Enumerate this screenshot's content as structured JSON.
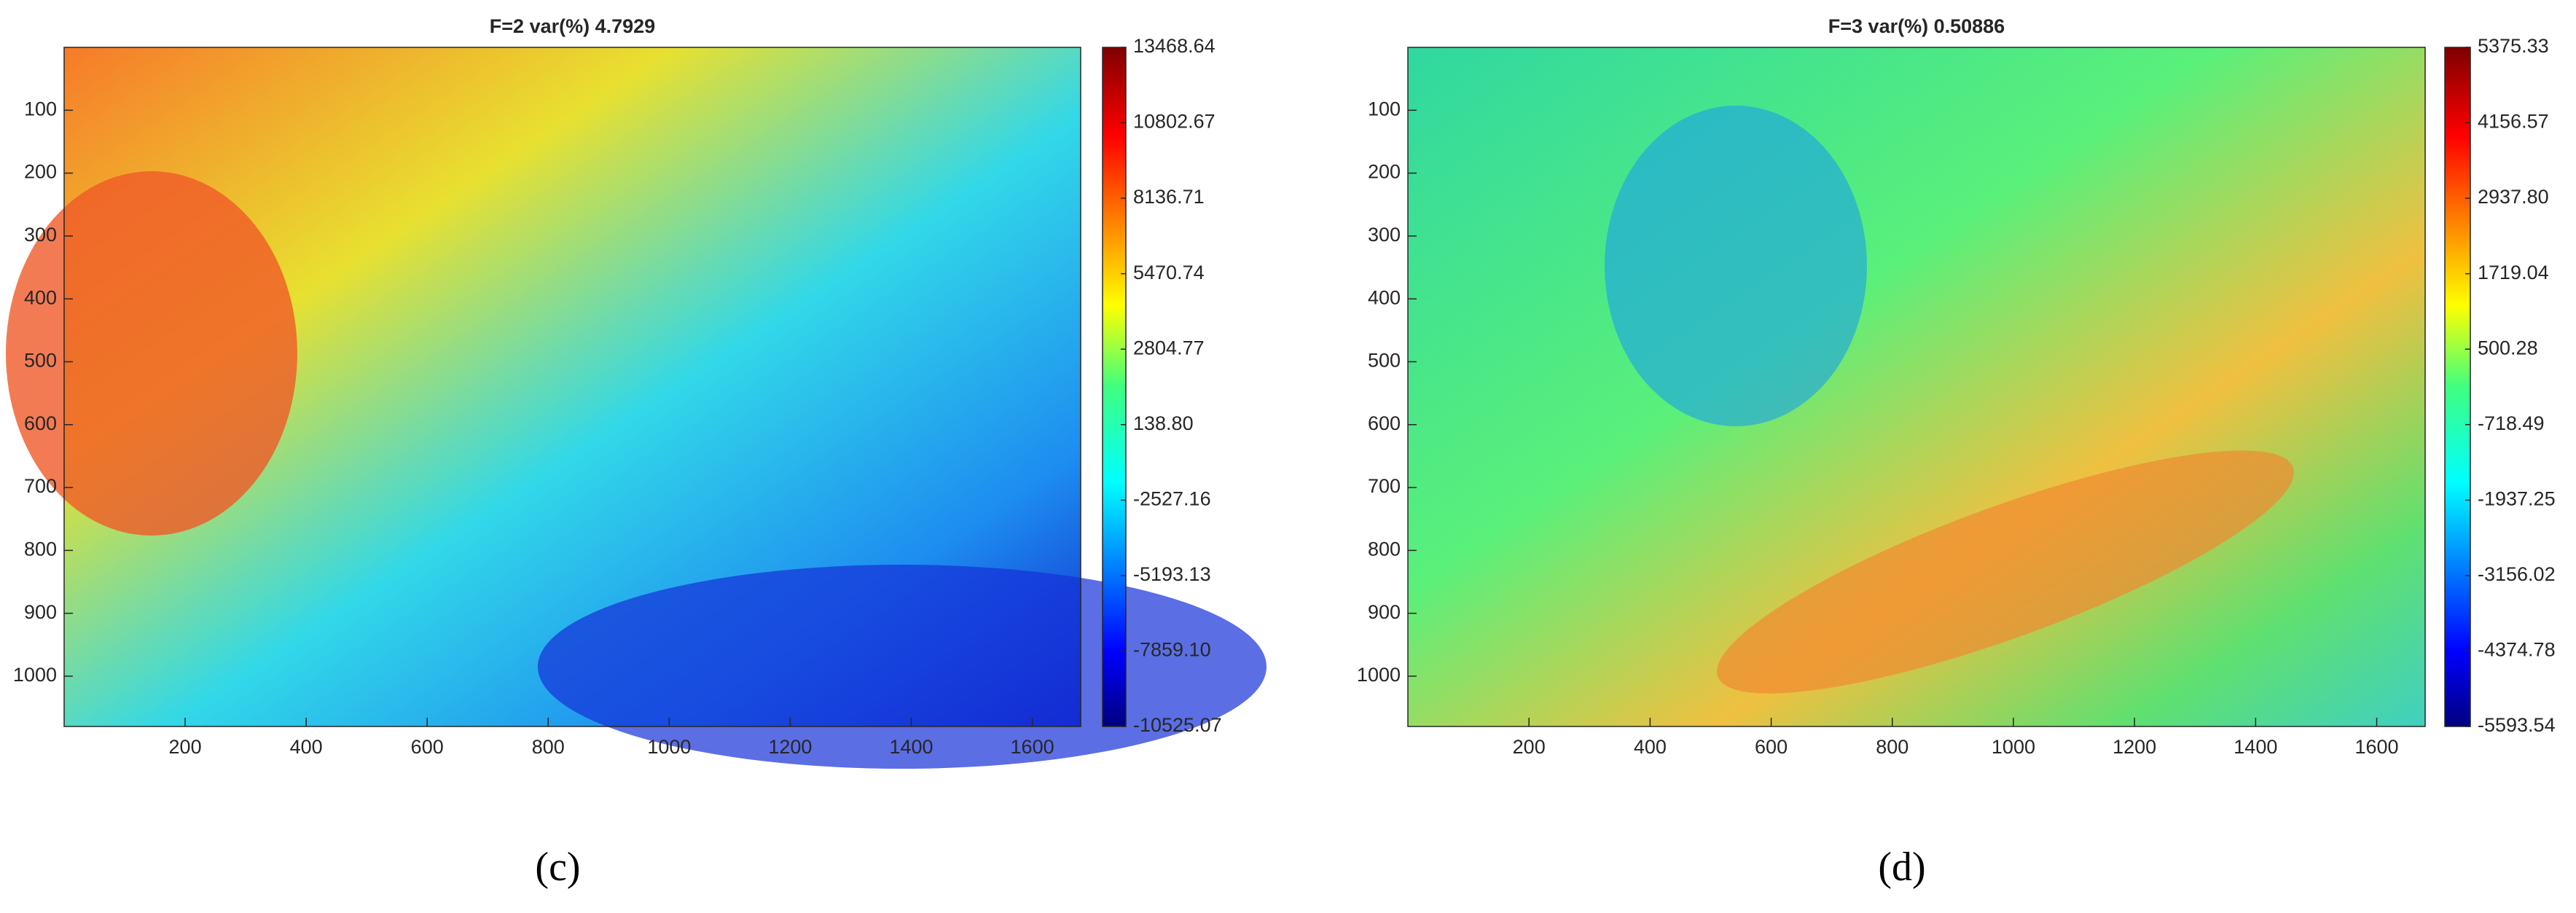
{
  "chart_data": [
    {
      "type": "heatmap",
      "title": "F=2 var(%) 4.7929",
      "caption": "(c)",
      "xlim": [
        0,
        1680
      ],
      "xticks": [
        200,
        400,
        600,
        800,
        1000,
        1200,
        1400,
        1600
      ],
      "ylim": [
        0,
        1080
      ],
      "yreverse": true,
      "yticks": [
        100,
        200,
        300,
        400,
        500,
        600,
        700,
        800,
        900,
        1000
      ],
      "colormap": "jet",
      "clim": [
        -10525.07,
        13468.64
      ],
      "cticks": [
        13468.64,
        10802.67,
        8136.71,
        5470.74,
        2804.77,
        {
          "value": 138.8,
          "label": "138.80"
        },
        -2527.16,
        -5193.13,
        {
          "value": -7859.1,
          "label": "-7859.10"
        },
        -10525.07
      ]
    },
    {
      "type": "heatmap",
      "title": "F=3 var(%) 0.50886",
      "caption": "(d)",
      "xlim": [
        0,
        1680
      ],
      "xticks": [
        200,
        400,
        600,
        800,
        1000,
        1200,
        1400,
        1600
      ],
      "ylim": [
        0,
        1080
      ],
      "yreverse": true,
      "yticks": [
        100,
        200,
        300,
        400,
        500,
        600,
        700,
        800,
        900,
        1000
      ],
      "colormap": "jet",
      "clim": [
        -5593.54,
        5375.33
      ],
      "cticks": [
        5375.33,
        4156.57,
        {
          "value": 2937.8,
          "label": "2937.80"
        },
        1719.04,
        500.28,
        -718.49,
        -1937.25,
        -3156.02,
        -4374.78,
        -5593.54
      ]
    }
  ]
}
